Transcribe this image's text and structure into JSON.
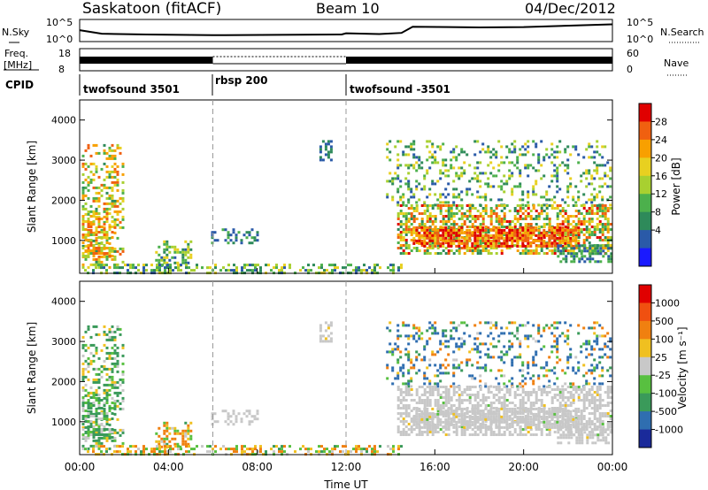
{
  "header": {
    "station": "Saskatoon (fitACF)",
    "beam": "Beam 10",
    "date": "04/Dec/2012"
  },
  "colors": {
    "power": [
      "#1a1aff",
      "#2a5aa8",
      "#2e8a5a",
      "#4cb04c",
      "#a8d030",
      "#e8d020",
      "#f8a000",
      "#f06010",
      "#e00000"
    ],
    "velocity": [
      "#1a2a9a",
      "#2f6eb0",
      "#3a9a5a",
      "#58c040",
      "#c8c8c8",
      "#f0c020",
      "#f08010",
      "#f05010",
      "#e00000"
    ]
  },
  "chart_data": [
    {
      "type": "line",
      "name": "noise-strip",
      "left_labels": [
        "N.Sky"
      ],
      "right_labels": [
        "N.Search"
      ],
      "left_ticks": [
        "10^5",
        "10^0"
      ],
      "right_ticks": [
        "10^5",
        "10^0"
      ],
      "x": [
        0,
        1,
        3,
        6,
        9,
        11.8,
        12,
        13.5,
        14.5,
        15,
        18,
        20,
        24
      ],
      "y_log10": [
        2.7,
        1.8,
        1.6,
        1.4,
        1.5,
        1.6,
        1.9,
        1.7,
        2.0,
        3.6,
        3.4,
        3.5,
        4.2
      ]
    },
    {
      "type": "line",
      "name": "frequency-strip",
      "left_labels": [
        "Freq.",
        "[MHz]"
      ],
      "right_labels": [
        "Nave"
      ],
      "left_ticks": [
        "18",
        "8"
      ],
      "right_ticks": [
        "60",
        "0"
      ],
      "segments": [
        {
          "start": 0,
          "end": 6,
          "kind": "solid"
        },
        {
          "start": 6,
          "end": 12,
          "kind": "dotted"
        },
        {
          "start": 12,
          "end": 24,
          "kind": "solid"
        }
      ]
    },
    {
      "type": "table",
      "name": "cpid-strip",
      "label": "CPID",
      "entries": [
        {
          "start": 0,
          "label": "twofsound 3501"
        },
        {
          "start": 6,
          "label": "rbsp 200"
        },
        {
          "start": 12,
          "label": "twofsound -3501"
        }
      ]
    },
    {
      "type": "heatmap",
      "name": "power",
      "ylabel": "Slant Range [km]",
      "colorbar_label": "Power [dB]",
      "colorbar_ticks": [
        "28",
        "24",
        "20",
        "16",
        "12",
        "8",
        "4"
      ],
      "ylim": [
        180,
        4500
      ],
      "yticks": [
        "4000",
        "3000",
        "2000",
        "1000"
      ]
    },
    {
      "type": "heatmap",
      "name": "velocity",
      "ylabel": "Slant Range [km]",
      "colorbar_label": "Velocity [m s⁻¹]",
      "colorbar_ticks": [
        "1000",
        "500",
        "100",
        "25",
        "-25",
        "-100",
        "-500",
        "-1000"
      ],
      "ylim": [
        180,
        4500
      ],
      "yticks": [
        "4000",
        "3000",
        "2000",
        "1000"
      ]
    }
  ],
  "xaxis": {
    "label": "Time UT",
    "tick_labels": [
      "00:00",
      "04:00",
      "08:00",
      "12:00",
      "16:00",
      "20:00",
      "00:00"
    ],
    "tick_hours": [
      0,
      4,
      8,
      12,
      16,
      20,
      24
    ],
    "dashed_hours": [
      6,
      12
    ]
  },
  "data_regions": [
    {
      "id": "early-scatter",
      "t0": 0.1,
      "t1": 1.9,
      "r0": 350,
      "r1": 3400,
      "density": 0.35,
      "power": [
        10,
        28
      ],
      "vel": [
        -100,
        300
      ],
      "mode": "mixed"
    },
    {
      "id": "early-dense",
      "t0": 0.1,
      "t1": 1.5,
      "r0": 600,
      "r1": 1700,
      "density": 0.6,
      "power": [
        14,
        28
      ],
      "vel": [
        -25,
        200
      ],
      "mode": "mixed"
    },
    {
      "id": "group-4h",
      "t0": 3.4,
      "t1": 5.0,
      "r0": 400,
      "r1": 1000,
      "density": 0.45,
      "power": [
        6,
        22
      ],
      "vel": [
        -300,
        150
      ],
      "mode": "mixed"
    },
    {
      "id": "band-7h",
      "t0": 5.8,
      "t1": 8.0,
      "r0": 950,
      "r1": 1300,
      "density": 0.35,
      "power": [
        4,
        14
      ],
      "vel": [
        -40,
        40
      ],
      "mode": "gray"
    },
    {
      "id": "nearrange",
      "t0": 0.2,
      "t1": 14.5,
      "r0": 190,
      "r1": 420,
      "density": 0.45,
      "power": [
        4,
        20
      ],
      "vel": [
        -200,
        120
      ],
      "mode": "mixed"
    },
    {
      "id": "spot-11h",
      "t0": 10.8,
      "t1": 11.3,
      "r0": 3000,
      "r1": 3500,
      "density": 0.45,
      "power": [
        4,
        10
      ],
      "vel": [
        -40,
        40
      ],
      "mode": "gray"
    },
    {
      "id": "late-top",
      "t0": 13.8,
      "t1": 23.9,
      "r0": 1900,
      "r1": 3500,
      "density": 0.22,
      "power": [
        4,
        20
      ],
      "vel": [
        -300,
        800
      ],
      "mode": "mixed"
    },
    {
      "id": "late-band",
      "t0": 14.3,
      "t1": 23.9,
      "r0": 700,
      "r1": 1900,
      "density": 0.55,
      "power": [
        8,
        30
      ],
      "vel": [
        -40,
        40
      ],
      "mode": "gray"
    },
    {
      "id": "late-core",
      "t0": 15.0,
      "t1": 22.5,
      "r0": 850,
      "r1": 1350,
      "density": 0.75,
      "power": [
        20,
        32
      ],
      "vel": [
        -40,
        40
      ],
      "mode": "gray"
    },
    {
      "id": "late-low",
      "t0": 21.5,
      "t1": 23.9,
      "r0": 500,
      "r1": 900,
      "density": 0.55,
      "power": [
        4,
        14
      ],
      "vel": [
        -40,
        40
      ],
      "mode": "gray"
    }
  ]
}
